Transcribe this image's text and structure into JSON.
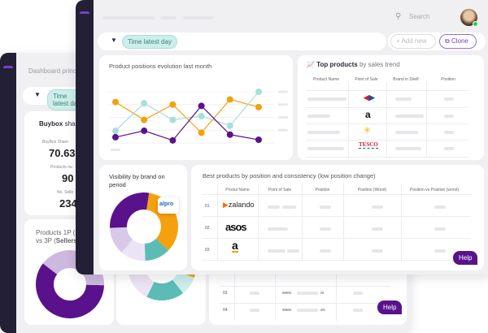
{
  "back_window": {
    "title": "Dashboard princ",
    "filter_chip": "Time latest day",
    "buybox": {
      "title_bold": "Buybox",
      "title_rest": " shar",
      "metrics": [
        {
          "label": "BuyBox Share",
          "value": "70.63"
        },
        {
          "label": "Products nu",
          "value": "90"
        },
        {
          "label": "No. Selle",
          "value": "234"
        }
      ]
    },
    "products_card": {
      "title_line1": "Products 1P (p",
      "title_line2_pre": "vs 3P (",
      "title_line2_bold": "Sellers",
      "title_line2_post": ")"
    },
    "table": {
      "rows": [
        {
          "index": "03",
          "prefix": "www.",
          "suffix": ".io"
        },
        {
          "index": "04.",
          "prefix": "www.",
          "suffix": ".es"
        }
      ],
      "help_label": "Help"
    }
  },
  "front_window": {
    "search_placeholder": "Search",
    "filter_chip": "Time latest day",
    "add_new_label": "Add new",
    "clone_label": "Clone",
    "line_card": {
      "title": "Product positions evolution last month"
    },
    "top_products": {
      "title_bold": "Top products",
      "title_rest": " by sales trend",
      "columns": [
        "Product Name",
        "Point of Sale",
        "Brand in Shelf",
        "Position"
      ],
      "logos": [
        "carrefour",
        "amazon",
        "walmart",
        "TESCO"
      ]
    },
    "visibility": {
      "title": "Visibility by brand on period",
      "badge": "alpro"
    },
    "best_products": {
      "title": "Best products by position and consistency (low position change)",
      "columns": [
        "Produt Name",
        "Point of Sale",
        "Position",
        "Position (Worst)",
        "Position vs Position (worst)"
      ],
      "rows": [
        {
          "index": "01",
          "logo": "zalando"
        },
        {
          "index": "02",
          "logo": "asos"
        },
        {
          "index": "03",
          "logo": "a"
        }
      ],
      "help_label": "Help"
    }
  },
  "colors": {
    "purple": "#5a128c",
    "orange": "#f5a00f",
    "teal": "#5bbcb6",
    "lightteal": "#a8dedb",
    "lavender": "#cdb8de",
    "pale": "#ece4f4",
    "sidebar": "#231f35"
  },
  "chart_data": {
    "type": "line",
    "title": "Product positions evolution last month",
    "x": [
      1,
      2,
      3,
      4,
      5,
      6
    ],
    "ylim": [
      0,
      4
    ],
    "grid": true,
    "series": [
      {
        "color": "#f5a00f",
        "values": [
          3.2,
          1.8,
          3.0,
          0.8,
          3.4,
          2.8
        ]
      },
      {
        "color": "#a8dedb",
        "values": [
          0.95,
          3.1,
          1.8,
          2.1,
          1.35,
          4.0
        ]
      },
      {
        "color": "#5a128c",
        "values": [
          0.45,
          0.95,
          0.2,
          2.9,
          0.65,
          0.25
        ]
      }
    ]
  },
  "donuts": {
    "visibility": [
      {
        "color": "#f5a00f",
        "value": 35
      },
      {
        "color": "#5bbcb6",
        "value": 12
      },
      {
        "color": "#ece4f4",
        "value": 12
      },
      {
        "color": "#d9c9e8",
        "value": 13
      },
      {
        "color": "#5a128c",
        "value": 28
      }
    ],
    "products_1p_3p": [
      {
        "color": "#5a128c",
        "value": 60
      },
      {
        "color": "#cdb8de",
        "value": 40
      }
    ],
    "back_middle": [
      {
        "color": "#fcd34d",
        "value": 4
      },
      {
        "color": "#f5a00f",
        "value": 12
      },
      {
        "color": "#cdeeea",
        "value": 9
      },
      {
        "color": "#5bbcb6",
        "value": 18
      },
      {
        "color": "#ece4f4",
        "value": 27
      },
      {
        "color": "#d9c9e8",
        "value": 30
      }
    ]
  }
}
